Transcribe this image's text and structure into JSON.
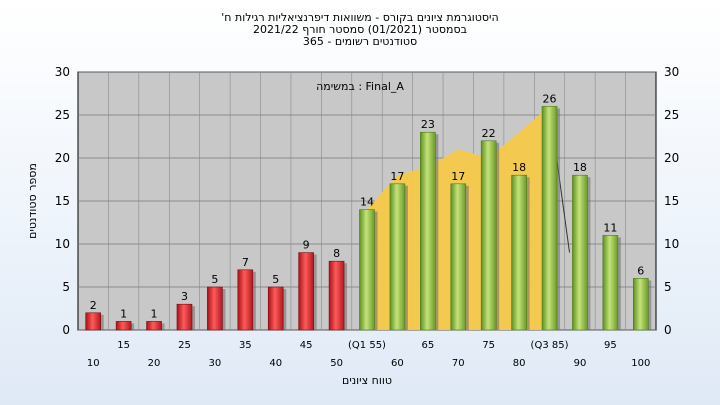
{
  "header": {
    "title_line1": "היסטוגרמת ציונים בקורס - משוואות דיפרנציאליות רגילות ח'",
    "title_line2": "בסמסטר  (01/2021)  סמסטר חורף 2021/22",
    "title_line3": "סטודנטים רשומים - 365"
  },
  "colors": {
    "plot_bg": "#c8c8c8",
    "bar_red": "#e4262c",
    "bar_green": "#8fbf3f",
    "area_yellow": "#f7c94a"
  },
  "chart_data": {
    "type": "bar",
    "annotation": "Final_A : במשימה",
    "xlabel": "טווח ציונים",
    "ylabel": "מספר סטודנטים",
    "ylim": [
      0,
      30
    ],
    "yticks": [
      0,
      5,
      10,
      15,
      20,
      25,
      30
    ],
    "grid": true,
    "categories": [
      "10",
      "15",
      "20",
      "25",
      "30",
      "35",
      "40",
      "45",
      "50",
      "(Q1 55)",
      "60",
      "65",
      "70",
      "75",
      "80",
      "(Q3 85)",
      "90",
      "95",
      "100"
    ],
    "values": [
      2,
      1,
      1,
      3,
      5,
      7,
      5,
      9,
      8,
      14,
      17,
      23,
      17,
      22,
      18,
      26,
      18,
      11,
      6
    ],
    "bar_colors": [
      "red",
      "red",
      "red",
      "red",
      "red",
      "red",
      "red",
      "red",
      "red",
      "green",
      "green",
      "green",
      "green",
      "green",
      "green",
      "green",
      "green",
      "green",
      "green"
    ],
    "band_series": {
      "from_index": 9,
      "to_index": 15,
      "values": [
        14,
        18,
        19,
        21,
        20,
        23,
        26
      ]
    }
  }
}
